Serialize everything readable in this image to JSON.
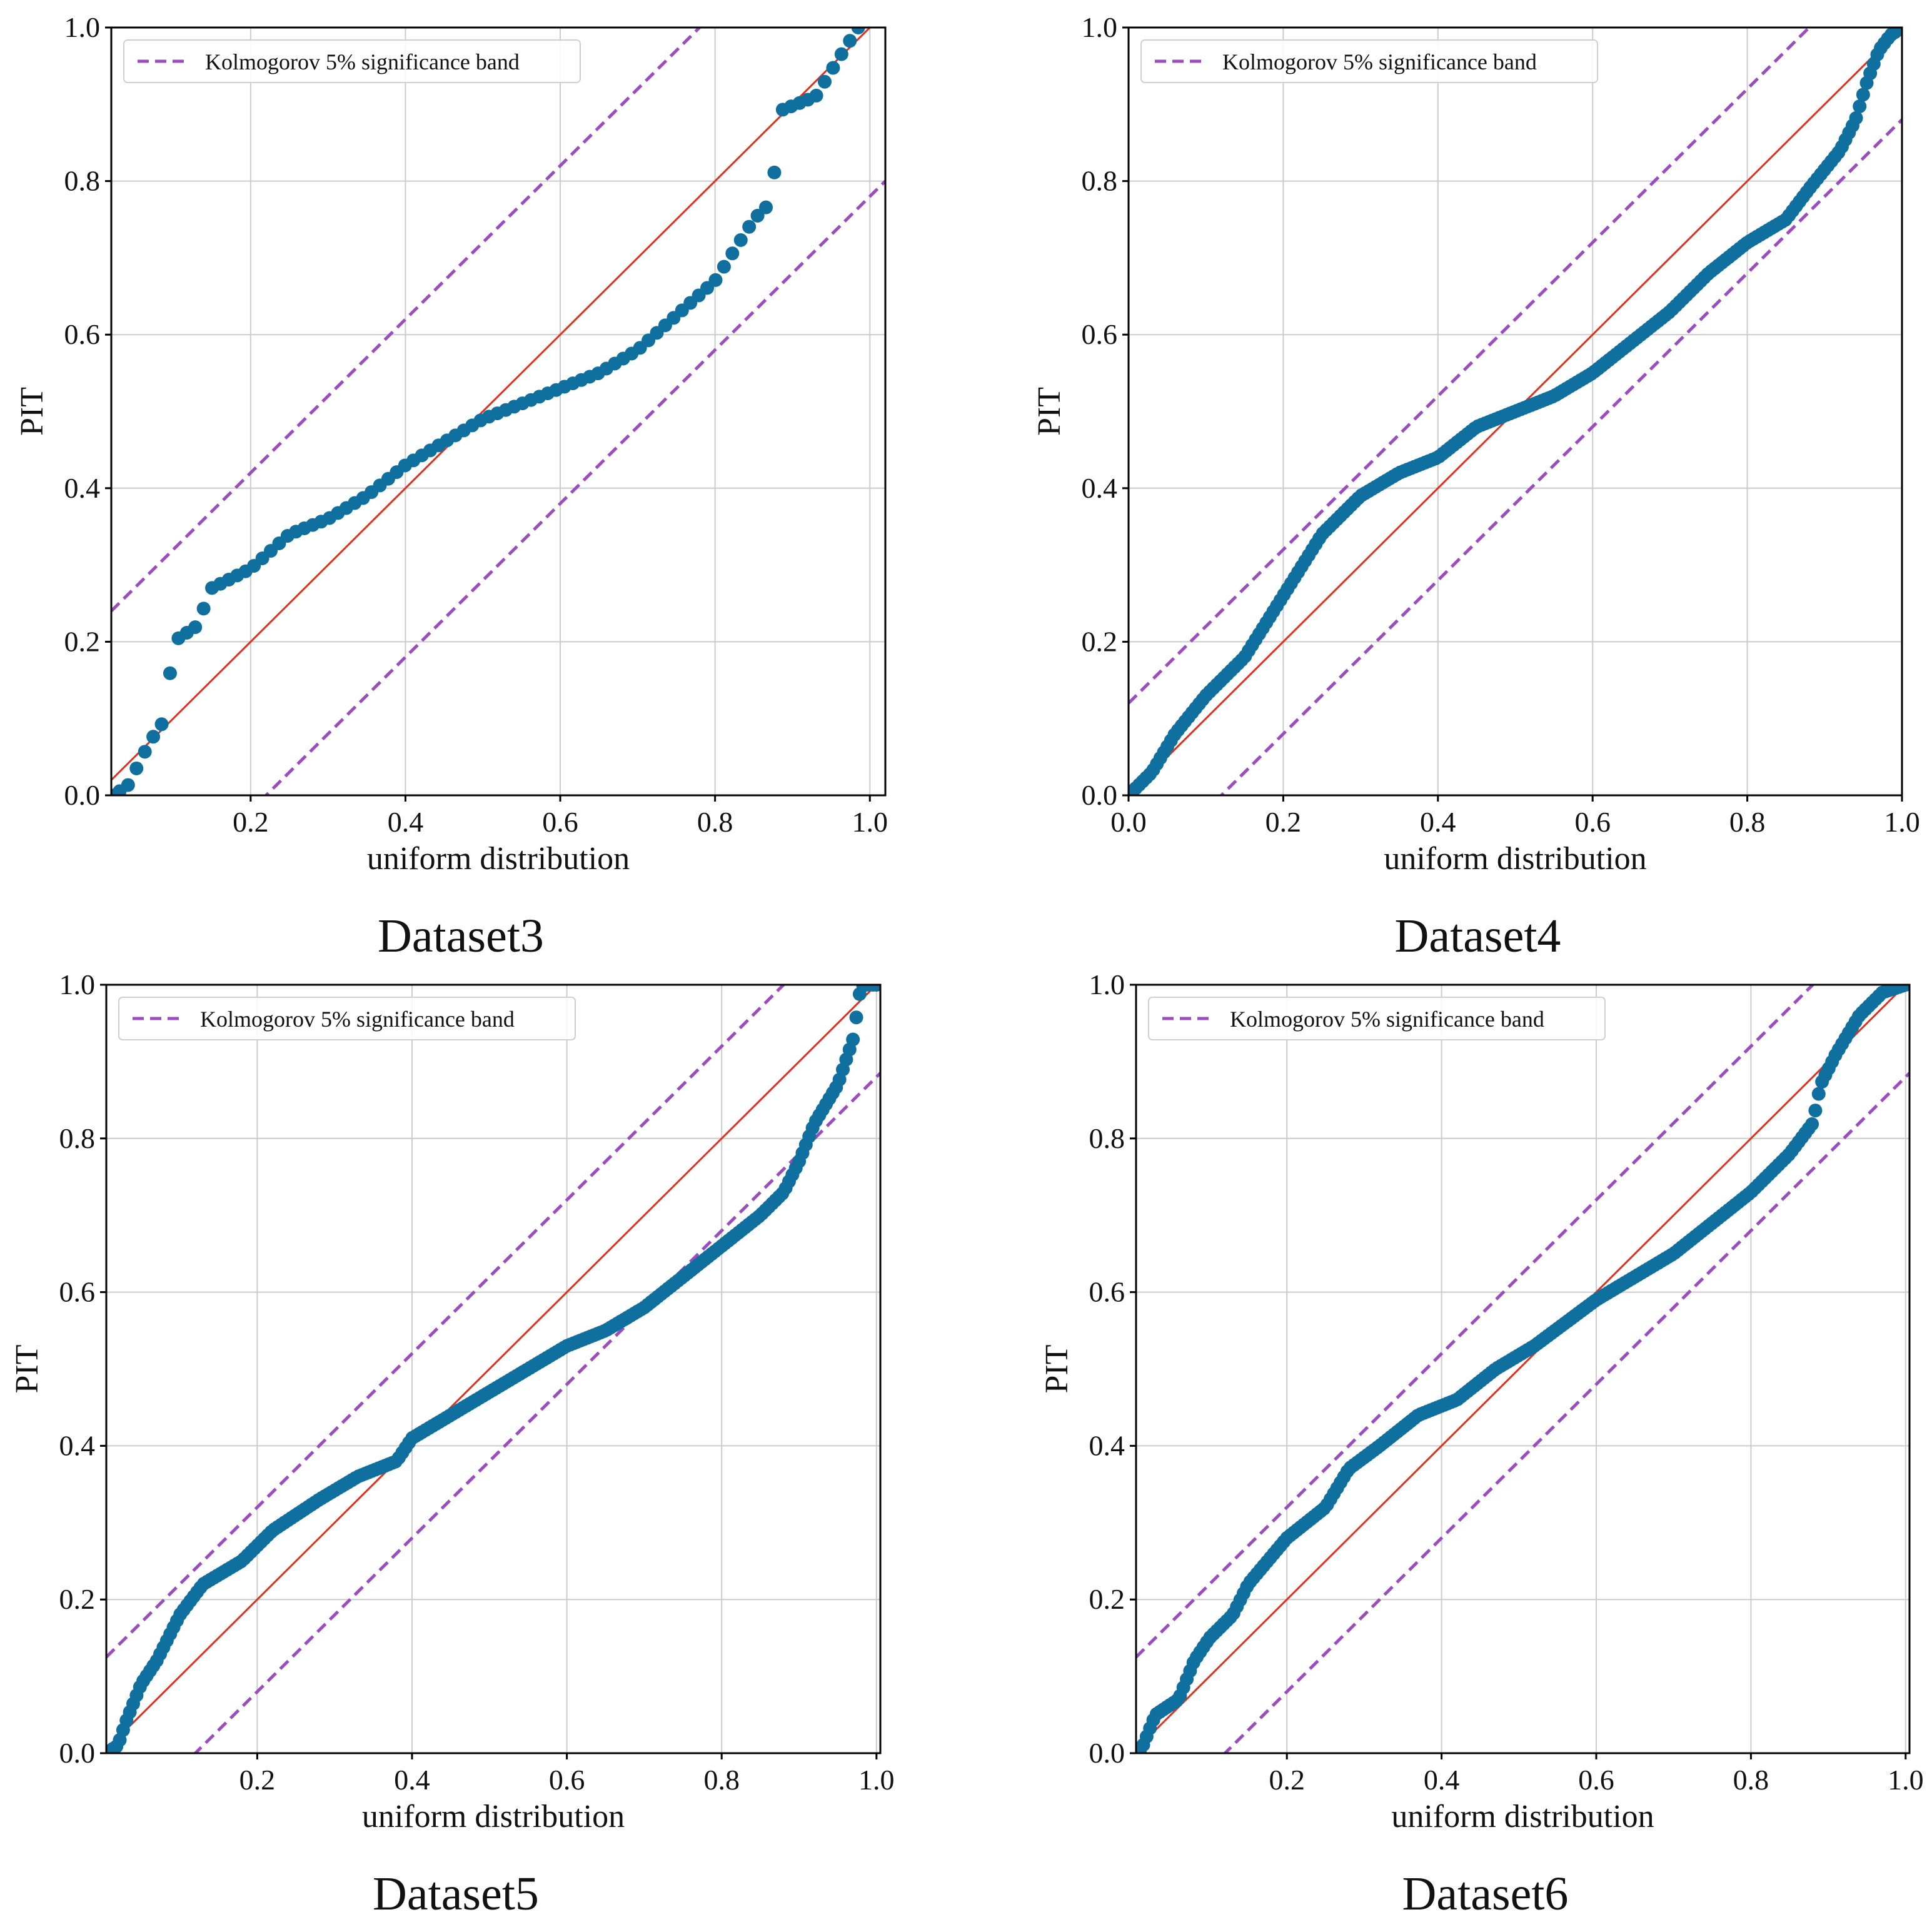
{
  "colors": {
    "points": "#1f77b4",
    "points_dark": "#0f6f9e",
    "identity_line": "#e03020",
    "band": "#9b4dbf",
    "grid": "#cccccc",
    "axes": "#000000"
  },
  "chart_data": [
    {
      "type": "scatter",
      "caption": "Dataset3",
      "xlabel": "uniform distribution",
      "ylabel": "PIT",
      "legend": "Kolmogorov 5% significance band",
      "legend_position": "top-left",
      "xlim": [
        0.02,
        1.02
      ],
      "ylim": [
        0.0,
        1.0
      ],
      "xticks": [
        "0.2",
        "0.4",
        "0.6",
        "0.8",
        "1.0"
      ],
      "xtick_values": [
        0.2,
        0.4,
        0.6,
        0.8,
        1.0
      ],
      "yticks": [
        "0.0",
        "0.2",
        "0.4",
        "0.6",
        "0.8",
        "1.0"
      ],
      "ytick_values": [
        0.0,
        0.2,
        0.4,
        0.6,
        0.8,
        1.0
      ],
      "band_offset": 0.22,
      "n_points": 90,
      "knots": [
        [
          0.02,
          0.0
        ],
        [
          0.04,
          0.01
        ],
        [
          0.07,
          0.07
        ],
        [
          0.09,
          0.1
        ],
        [
          0.1,
          0.2
        ],
        [
          0.13,
          0.22
        ],
        [
          0.15,
          0.27
        ],
        [
          0.2,
          0.295
        ],
        [
          0.25,
          0.34
        ],
        [
          0.3,
          0.36
        ],
        [
          0.35,
          0.39
        ],
        [
          0.4,
          0.43
        ],
        [
          0.45,
          0.46
        ],
        [
          0.5,
          0.49
        ],
        [
          0.55,
          0.51
        ],
        [
          0.6,
          0.53
        ],
        [
          0.65,
          0.55
        ],
        [
          0.7,
          0.58
        ],
        [
          0.75,
          0.625
        ],
        [
          0.8,
          0.67
        ],
        [
          0.85,
          0.75
        ],
        [
          0.875,
          0.775
        ],
        [
          0.88,
          0.89
        ],
        [
          0.93,
          0.91
        ],
        [
          0.96,
          0.96
        ],
        [
          0.985,
          1.0
        ]
      ]
    },
    {
      "type": "scatter",
      "caption": "Dataset4",
      "xlabel": "uniform distribution",
      "ylabel": "PIT",
      "legend": "Kolmogorov 5% significance band",
      "legend_position": "top-left",
      "xlim": [
        0.0,
        1.0
      ],
      "ylim": [
        0.0,
        1.0
      ],
      "xticks": [
        "0.0",
        "0.2",
        "0.4",
        "0.6",
        "0.8",
        "1.0"
      ],
      "xtick_values": [
        0.0,
        0.2,
        0.4,
        0.6,
        0.8,
        1.0
      ],
      "yticks": [
        "0.0",
        "0.2",
        "0.4",
        "0.6",
        "0.8",
        "1.0"
      ],
      "ytick_values": [
        0.0,
        0.2,
        0.4,
        0.6,
        0.8,
        1.0
      ],
      "band_offset": 0.12,
      "n_points": 220,
      "knots": [
        [
          0.0,
          0.0
        ],
        [
          0.03,
          0.03
        ],
        [
          0.06,
          0.08
        ],
        [
          0.1,
          0.13
        ],
        [
          0.15,
          0.18
        ],
        [
          0.2,
          0.26
        ],
        [
          0.25,
          0.34
        ],
        [
          0.3,
          0.39
        ],
        [
          0.35,
          0.42
        ],
        [
          0.4,
          0.44
        ],
        [
          0.45,
          0.48
        ],
        [
          0.5,
          0.5
        ],
        [
          0.55,
          0.52
        ],
        [
          0.6,
          0.55
        ],
        [
          0.65,
          0.59
        ],
        [
          0.7,
          0.63
        ],
        [
          0.75,
          0.68
        ],
        [
          0.8,
          0.72
        ],
        [
          0.85,
          0.75
        ],
        [
          0.88,
          0.79
        ],
        [
          0.92,
          0.84
        ],
        [
          0.94,
          0.88
        ],
        [
          0.955,
          0.93
        ],
        [
          0.97,
          0.97
        ],
        [
          0.985,
          0.99
        ],
        [
          1.0,
          1.0
        ]
      ]
    },
    {
      "type": "scatter",
      "caption": "Dataset5",
      "xlabel": "uniform distribution",
      "ylabel": "PIT",
      "legend": "Kolmogorov 5% significance band",
      "legend_position": "top-left",
      "xlim": [
        0.005,
        1.005
      ],
      "ylim": [
        0.0,
        1.0
      ],
      "xticks": [
        "0.2",
        "0.4",
        "0.6",
        "0.8",
        "1.0"
      ],
      "xtick_values": [
        0.2,
        0.4,
        0.6,
        0.8,
        1.0
      ],
      "yticks": [
        "0.0",
        "0.2",
        "0.4",
        "0.6",
        "0.8",
        "1.0"
      ],
      "ytick_values": [
        0.0,
        0.2,
        0.4,
        0.6,
        0.8,
        1.0
      ],
      "band_offset": 0.12,
      "n_points": 230,
      "knots": [
        [
          0.005,
          0.0
        ],
        [
          0.02,
          0.01
        ],
        [
          0.03,
          0.04
        ],
        [
          0.05,
          0.09
        ],
        [
          0.07,
          0.12
        ],
        [
          0.1,
          0.18
        ],
        [
          0.13,
          0.22
        ],
        [
          0.18,
          0.25
        ],
        [
          0.22,
          0.29
        ],
        [
          0.28,
          0.33
        ],
        [
          0.33,
          0.36
        ],
        [
          0.38,
          0.38
        ],
        [
          0.4,
          0.41
        ],
        [
          0.45,
          0.44
        ],
        [
          0.5,
          0.47
        ],
        [
          0.55,
          0.5
        ],
        [
          0.6,
          0.53
        ],
        [
          0.65,
          0.55
        ],
        [
          0.7,
          0.58
        ],
        [
          0.75,
          0.62
        ],
        [
          0.8,
          0.66
        ],
        [
          0.85,
          0.7
        ],
        [
          0.88,
          0.73
        ],
        [
          0.9,
          0.77
        ],
        [
          0.92,
          0.82
        ],
        [
          0.95,
          0.87
        ],
        [
          0.97,
          0.93
        ],
        [
          0.98,
          1.0
        ],
        [
          1.0,
          1.0
        ]
      ]
    },
    {
      "type": "scatter",
      "caption": "Dataset6",
      "xlabel": "uniform distribution",
      "ylabel": "PIT",
      "legend": "Kolmogorov 5% significance band",
      "legend_position": "top-left",
      "xlim": [
        0.005,
        1.005
      ],
      "ylim": [
        0.0,
        1.0
      ],
      "xticks": [
        "0.2",
        "0.4",
        "0.6",
        "0.8",
        "1.0"
      ],
      "xtick_values": [
        0.2,
        0.4,
        0.6,
        0.8,
        1.0
      ],
      "yticks": [
        "0.0",
        "0.2",
        "0.4",
        "0.6",
        "0.8",
        "1.0"
      ],
      "ytick_values": [
        0.0,
        0.2,
        0.4,
        0.6,
        0.8,
        1.0
      ],
      "band_offset": 0.12,
      "n_points": 230,
      "knots": [
        [
          0.01,
          0.0
        ],
        [
          0.03,
          0.05
        ],
        [
          0.06,
          0.07
        ],
        [
          0.08,
          0.12
        ],
        [
          0.1,
          0.15
        ],
        [
          0.13,
          0.18
        ],
        [
          0.15,
          0.22
        ],
        [
          0.2,
          0.28
        ],
        [
          0.25,
          0.32
        ],
        [
          0.28,
          0.37
        ],
        [
          0.32,
          0.4
        ],
        [
          0.37,
          0.44
        ],
        [
          0.42,
          0.46
        ],
        [
          0.47,
          0.5
        ],
        [
          0.52,
          0.53
        ],
        [
          0.56,
          0.56
        ],
        [
          0.6,
          0.59
        ],
        [
          0.65,
          0.62
        ],
        [
          0.7,
          0.65
        ],
        [
          0.75,
          0.69
        ],
        [
          0.8,
          0.73
        ],
        [
          0.85,
          0.78
        ],
        [
          0.88,
          0.82
        ],
        [
          0.89,
          0.87
        ],
        [
          0.91,
          0.91
        ],
        [
          0.94,
          0.96
        ],
        [
          0.97,
          0.99
        ],
        [
          1.0,
          1.0
        ]
      ]
    }
  ]
}
